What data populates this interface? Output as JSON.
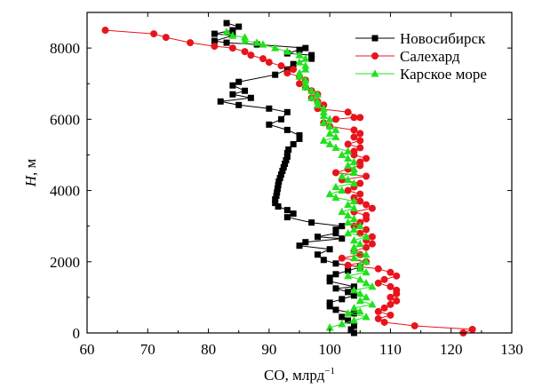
{
  "chart_data": {
    "type": "line",
    "title": "",
    "xlabel": "CO, млрд",
    "xlabel_sup": "−1",
    "ylabel_var": "H",
    "ylabel_unit": ", м",
    "xlim": [
      60,
      130
    ],
    "ylim": [
      0,
      9000
    ],
    "x_ticks": [
      60,
      70,
      80,
      90,
      100,
      110,
      120,
      130
    ],
    "y_ticks": [
      0,
      2000,
      4000,
      6000,
      8000
    ],
    "grid": false,
    "legend_position": "top-right",
    "series": [
      {
        "name": "Новосибирск",
        "color": "#000000",
        "marker": "square",
        "points": [
          [
            104,
            0
          ],
          [
            103.5,
            100
          ],
          [
            104,
            200
          ],
          [
            103,
            350
          ],
          [
            102,
            450
          ],
          [
            104,
            550
          ],
          [
            101,
            650
          ],
          [
            100,
            750
          ],
          [
            100,
            850
          ],
          [
            102,
            950
          ],
          [
            104,
            1050
          ],
          [
            103,
            1150
          ],
          [
            101,
            1250
          ],
          [
            104,
            1300
          ],
          [
            100,
            1450
          ],
          [
            100,
            1550
          ],
          [
            101,
            1650
          ],
          [
            103,
            1750
          ],
          [
            105,
            1850
          ],
          [
            101,
            1950
          ],
          [
            99,
            2050
          ],
          [
            98,
            2200
          ],
          [
            100,
            2350
          ],
          [
            95,
            2450
          ],
          [
            96,
            2550
          ],
          [
            102,
            2650
          ],
          [
            98,
            2700
          ],
          [
            101,
            2800
          ],
          [
            101,
            2900
          ],
          [
            102,
            3000
          ],
          [
            97,
            3100
          ],
          [
            93,
            3250
          ],
          [
            94,
            3350
          ],
          [
            93,
            3450
          ],
          [
            91.5,
            3550
          ],
          [
            91,
            3650
          ],
          [
            91,
            3750
          ],
          [
            91.2,
            3850
          ],
          [
            91.3,
            3950
          ],
          [
            91.4,
            4050
          ],
          [
            91.5,
            4150
          ],
          [
            91.6,
            4250
          ],
          [
            91.8,
            4350
          ],
          [
            92,
            4450
          ],
          [
            92.2,
            4550
          ],
          [
            92.4,
            4650
          ],
          [
            92.6,
            4750
          ],
          [
            92.8,
            4850
          ],
          [
            93,
            4950
          ],
          [
            93,
            5050
          ],
          [
            93.2,
            5150
          ],
          [
            94,
            5300
          ],
          [
            95,
            5450
          ],
          [
            95,
            5550
          ],
          [
            93,
            5700
          ],
          [
            90,
            5850
          ],
          [
            92,
            6000
          ],
          [
            93,
            6200
          ],
          [
            90,
            6300
          ],
          [
            85,
            6400
          ],
          [
            82,
            6500
          ],
          [
            87,
            6600
          ],
          [
            84,
            6700
          ],
          [
            86,
            6800
          ],
          [
            84,
            6950
          ],
          [
            85,
            7050
          ],
          [
            91,
            7250
          ],
          [
            93,
            7400
          ],
          [
            94,
            7550
          ],
          [
            97,
            7700
          ],
          [
            97,
            7800
          ],
          [
            93,
            7850
          ],
          [
            95,
            7950
          ],
          [
            96,
            8000
          ],
          [
            88,
            8100
          ],
          [
            83,
            8150
          ],
          [
            81,
            8200
          ],
          [
            84,
            8350
          ],
          [
            81,
            8400
          ],
          [
            84,
            8500
          ],
          [
            85,
            8600
          ],
          [
            83,
            8700
          ]
        ]
      },
      {
        "name": "Салехард",
        "color": "#e8141c",
        "marker": "circle",
        "points": [
          [
            122,
            0
          ],
          [
            123.5,
            100
          ],
          [
            114,
            200
          ],
          [
            109,
            300
          ],
          [
            108,
            400
          ],
          [
            110,
            500
          ],
          [
            108,
            600
          ],
          [
            109,
            700
          ],
          [
            110,
            800
          ],
          [
            111,
            900
          ],
          [
            110,
            1000
          ],
          [
            111,
            1100
          ],
          [
            111,
            1200
          ],
          [
            110,
            1300
          ],
          [
            108,
            1400
          ],
          [
            109,
            1500
          ],
          [
            111,
            1600
          ],
          [
            110,
            1700
          ],
          [
            108,
            1800
          ],
          [
            103,
            1900
          ],
          [
            106,
            2000
          ],
          [
            102,
            2100
          ],
          [
            105,
            2200
          ],
          [
            104,
            2300
          ],
          [
            106,
            2400
          ],
          [
            107,
            2500
          ],
          [
            106,
            2600
          ],
          [
            107,
            2700
          ],
          [
            105,
            2800
          ],
          [
            106,
            2900
          ],
          [
            104,
            3000
          ],
          [
            105,
            3100
          ],
          [
            106,
            3200
          ],
          [
            106,
            3300
          ],
          [
            104,
            3400
          ],
          [
            107,
            3500
          ],
          [
            106,
            3600
          ],
          [
            105,
            3700
          ],
          [
            104,
            3800
          ],
          [
            105,
            3900
          ],
          [
            103,
            4000
          ],
          [
            104,
            4100
          ],
          [
            105,
            4200
          ],
          [
            102,
            4300
          ],
          [
            106,
            4400
          ],
          [
            101,
            4500
          ],
          [
            103,
            4600
          ],
          [
            105,
            4700
          ],
          [
            105,
            4800
          ],
          [
            106,
            4900
          ],
          [
            104,
            5000
          ],
          [
            104,
            5100
          ],
          [
            105,
            5200
          ],
          [
            103,
            5300
          ],
          [
            105,
            5400
          ],
          [
            104,
            5500
          ],
          [
            105,
            5600
          ],
          [
            104,
            5700
          ],
          [
            100,
            5800
          ],
          [
            99,
            5900
          ],
          [
            101,
            6000
          ],
          [
            104,
            6050
          ],
          [
            105,
            6050
          ],
          [
            103,
            6200
          ],
          [
            98,
            6300
          ],
          [
            99,
            6400
          ],
          [
            98,
            6500
          ],
          [
            97,
            6600
          ],
          [
            98,
            6700
          ],
          [
            97,
            6800
          ],
          [
            96,
            6900
          ],
          [
            95,
            7000
          ],
          [
            96,
            7100
          ],
          [
            95,
            7200
          ],
          [
            93,
            7300
          ],
          [
            94,
            7400
          ],
          [
            92,
            7500
          ],
          [
            90,
            7600
          ],
          [
            89,
            7700
          ],
          [
            87,
            7800
          ],
          [
            86,
            7900
          ],
          [
            84,
            8000
          ],
          [
            81,
            8050
          ],
          [
            77,
            8150
          ],
          [
            73,
            8300
          ],
          [
            71,
            8400
          ],
          [
            63,
            8500
          ]
        ]
      },
      {
        "name": "Карское море",
        "color": "#22e01e",
        "marker": "triangle",
        "points": [
          [
            100,
            150
          ],
          [
            102,
            250
          ],
          [
            104,
            350
          ],
          [
            106,
            450
          ],
          [
            103,
            550
          ],
          [
            105,
            600
          ],
          [
            104,
            700
          ],
          [
            107,
            800
          ],
          [
            105,
            900
          ],
          [
            106,
            1000
          ],
          [
            105,
            1100
          ],
          [
            104,
            1200
          ],
          [
            107,
            1300
          ],
          [
            106,
            1400
          ],
          [
            105,
            1500
          ],
          [
            103,
            1600
          ],
          [
            106,
            1700
          ],
          [
            105,
            1800
          ],
          [
            105,
            1900
          ],
          [
            106,
            2000
          ],
          [
            104,
            2100
          ],
          [
            106,
            2200
          ],
          [
            104,
            2300
          ],
          [
            104,
            2400
          ],
          [
            105,
            2500
          ],
          [
            104,
            2600
          ],
          [
            106,
            2700
          ],
          [
            103,
            2800
          ],
          [
            104,
            2900
          ],
          [
            105,
            3000
          ],
          [
            103,
            3100
          ],
          [
            104,
            3200
          ],
          [
            103,
            3300
          ],
          [
            102,
            3400
          ],
          [
            104,
            3500
          ],
          [
            103,
            3600
          ],
          [
            104,
            3700
          ],
          [
            101,
            3800
          ],
          [
            100,
            3900
          ],
          [
            102,
            4000
          ],
          [
            101,
            4100
          ],
          [
            104,
            4200
          ],
          [
            103,
            4300
          ],
          [
            102,
            4400
          ],
          [
            104,
            4500
          ],
          [
            104,
            4600
          ],
          [
            103,
            4700
          ],
          [
            104,
            4800
          ],
          [
            103,
            4900
          ],
          [
            102,
            5000
          ],
          [
            103,
            5100
          ],
          [
            101,
            5200
          ],
          [
            100,
            5300
          ],
          [
            99,
            5400
          ],
          [
            101,
            5500
          ],
          [
            100,
            5600
          ],
          [
            101,
            5700
          ],
          [
            100,
            5800
          ],
          [
            99,
            5900
          ],
          [
            100,
            6000
          ],
          [
            99,
            6100
          ],
          [
            99,
            6200
          ],
          [
            99,
            6300
          ],
          [
            98,
            6400
          ],
          [
            98,
            6500
          ],
          [
            97,
            6600
          ],
          [
            98,
            6700
          ],
          [
            97,
            6800
          ],
          [
            96,
            6900
          ],
          [
            96,
            7000
          ],
          [
            96,
            7100
          ],
          [
            95,
            7200
          ],
          [
            95,
            7300
          ],
          [
            96,
            7400
          ],
          [
            96,
            7500
          ],
          [
            95,
            7600
          ],
          [
            96,
            7700
          ],
          [
            95,
            7800
          ],
          [
            93,
            7900
          ],
          [
            91,
            8000
          ],
          [
            89,
            8100
          ],
          [
            88,
            8150
          ],
          [
            86,
            8200
          ],
          [
            86,
            8300
          ],
          [
            84,
            8350
          ],
          [
            83,
            8450
          ]
        ]
      }
    ]
  }
}
